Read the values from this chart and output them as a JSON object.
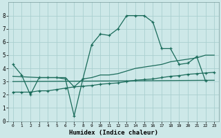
{
  "xlabel": "Humidex (Indice chaleur)",
  "bg_color": "#cde8e8",
  "grid_color": "#aacfcf",
  "line_color": "#1a6b5a",
  "xlim": [
    -0.5,
    23.5
  ],
  "ylim": [
    0,
    9
  ],
  "xticks": [
    0,
    1,
    2,
    3,
    4,
    5,
    6,
    7,
    8,
    9,
    10,
    11,
    12,
    13,
    14,
    15,
    16,
    17,
    18,
    19,
    20,
    21,
    22,
    23
  ],
  "yticks": [
    0,
    1,
    2,
    3,
    4,
    5,
    6,
    7,
    8
  ],
  "curve1_x": [
    0,
    1,
    2,
    3,
    4,
    5,
    6,
    7,
    8,
    9,
    10,
    11,
    12,
    13,
    14,
    15,
    16,
    17,
    18,
    19,
    20,
    21,
    22
  ],
  "curve1_y": [
    4.3,
    3.5,
    2.0,
    3.3,
    3.3,
    3.3,
    3.2,
    0.4,
    3.2,
    5.8,
    6.6,
    6.5,
    7.0,
    8.0,
    8.0,
    8.0,
    7.5,
    5.5,
    5.5,
    4.3,
    4.4,
    4.9,
    3.05
  ],
  "curve2_x": [
    0,
    1,
    2,
    3,
    4,
    5,
    6,
    7,
    8,
    9,
    10,
    11,
    12,
    13,
    14,
    15,
    16,
    17,
    18,
    19,
    20,
    21,
    22,
    23
  ],
  "curve2_y": [
    2.2,
    2.2,
    2.2,
    2.3,
    2.3,
    2.4,
    2.5,
    2.6,
    2.65,
    2.7,
    2.8,
    2.85,
    2.9,
    3.0,
    3.1,
    3.15,
    3.2,
    3.3,
    3.4,
    3.45,
    3.55,
    3.6,
    3.65,
    3.7
  ],
  "line3_x": [
    0,
    23
  ],
  "line3_y": [
    3.0,
    3.1
  ],
  "line4_x": [
    0,
    3,
    6,
    7,
    8,
    9,
    10,
    11,
    12,
    13,
    14,
    15,
    16,
    17,
    18,
    19,
    20,
    21,
    22,
    23
  ],
  "line4_y": [
    3.4,
    3.3,
    3.3,
    2.6,
    3.2,
    3.3,
    3.5,
    3.5,
    3.6,
    3.8,
    4.0,
    4.1,
    4.2,
    4.3,
    4.5,
    4.6,
    4.7,
    4.8,
    5.0,
    5.0
  ]
}
